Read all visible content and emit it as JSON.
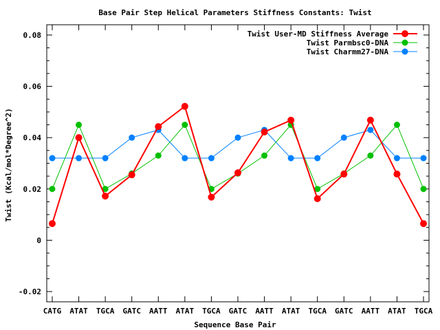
{
  "chart_data": {
    "type": "line",
    "title": "Base Pair Step Helical Parameters Stiffness Constants: Twist",
    "xlabel": "Sequence Base Pair",
    "ylabel": "Twist (Kcal/mol*Degree^2)",
    "ylim": [
      -0.024,
      0.084
    ],
    "yticks": [
      -0.02,
      0,
      0.02,
      0.04,
      0.06,
      0.08
    ],
    "ytick_labels": [
      "-0.02",
      "0",
      "0.02",
      "0.04",
      "0.06",
      "0.08"
    ],
    "categories": [
      "CATG",
      "ATAT",
      "TGCA",
      "GATC",
      "AATT",
      "ATAT",
      "TGCA",
      "GATC",
      "AATT",
      "ATAT",
      "TGCA",
      "GATC",
      "AATT",
      "ATAT",
      "TGCA"
    ],
    "grid": false,
    "legend_position": "top-right",
    "series": [
      {
        "name": "Twist User-MD Stiffness Average",
        "color": "#ff0000",
        "values": [
          0.0065,
          0.04,
          0.0172,
          0.0255,
          0.0443,
          0.0522,
          0.0168,
          0.0263,
          0.0422,
          0.0468,
          0.0162,
          0.0258,
          0.0468,
          0.0258,
          0.0065
        ]
      },
      {
        "name": "Twist Parmbsc0-DNA",
        "color": "#00c000",
        "values": [
          0.02,
          0.045,
          0.02,
          0.026,
          0.033,
          0.045,
          0.02,
          0.026,
          0.033,
          0.045,
          0.02,
          0.026,
          0.033,
          0.045,
          0.02
        ]
      },
      {
        "name": "Twist Charmm27-DNA",
        "color": "#0080ff",
        "values": [
          0.032,
          0.032,
          0.032,
          0.04,
          0.043,
          0.032,
          0.032,
          0.04,
          0.043,
          0.032,
          0.032,
          0.04,
          0.043,
          0.032,
          0.032
        ]
      }
    ]
  }
}
